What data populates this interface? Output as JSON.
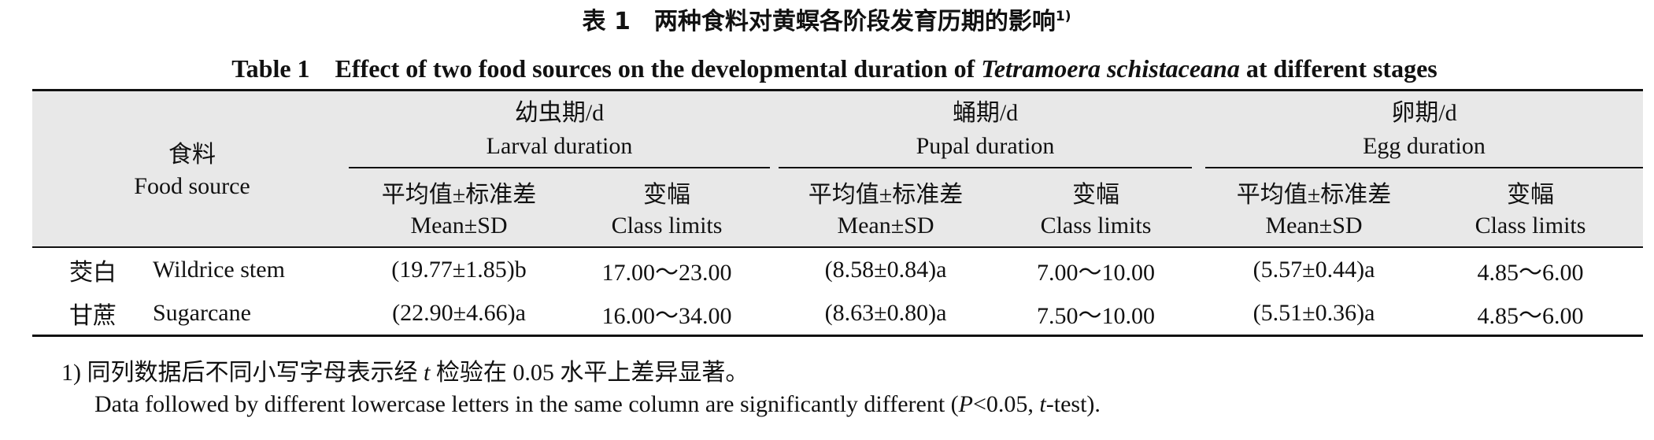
{
  "title": {
    "cn": "表 1　两种食料对黄螟各阶段发育历期的影响",
    "cn_note": "1)",
    "en": [
      "Table 1　Effect of two food sources on the developmental duration of ",
      "Tetramoera schistaceana",
      " at different stages"
    ]
  },
  "table": {
    "food_header": [
      "食料",
      "Food source"
    ],
    "groups": [
      {
        "cn": "幼虫期/d",
        "en": "Larval duration"
      },
      {
        "cn": "蛹期/d",
        "en": "Pupal duration"
      },
      {
        "cn": "卵期/d",
        "en": "Egg duration"
      }
    ],
    "sub_headers": [
      [
        "平均值±标准差",
        "Mean±SD"
      ],
      [
        "变幅",
        "Class limits"
      ]
    ],
    "rows": [
      [
        "茭白",
        "Wildrice stem",
        "(19.77±1.85)b",
        "17.00～23.00",
        "(8.58±0.84)a",
        "7.00～10.00",
        "(5.57±0.44)a",
        "4.85～6.00"
      ],
      [
        "甘蔗",
        "Sugarcane",
        "(22.90±4.66)a",
        "16.00～34.00",
        "(8.63±0.80)a",
        "7.50～10.00",
        "(5.51±0.36)a",
        "4.85～6.00"
      ]
    ]
  },
  "footnote": {
    "cn": [
      "1) 同列数据后不同小写字母表示经 ",
      "t",
      " 检验在 0.05 水平上差异显著。"
    ],
    "en": [
      "Data followed by different lowercase letters in the same column are significantly different (",
      "P",
      "<0.05, ",
      "t",
      "-test)."
    ]
  }
}
